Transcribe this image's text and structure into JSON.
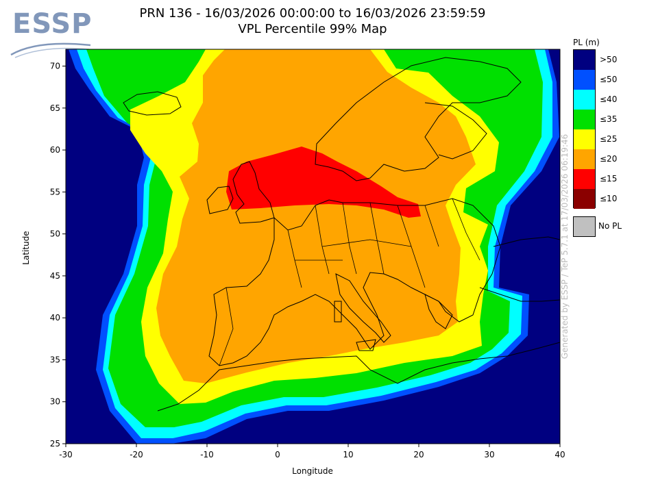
{
  "logo": {
    "text": "ESSP"
  },
  "title": {
    "line1": "PRN 136 - 16/03/2026 00:00:00 to 16/03/2026 23:59:59",
    "line2": "VPL Percentile 99% Map"
  },
  "axes": {
    "xlabel": "Longitude",
    "ylabel": "Latitude",
    "xticks": [
      "-30",
      "-20",
      "-10",
      "0",
      "10",
      "20",
      "30",
      "40"
    ],
    "yticks": [
      "25",
      "30",
      "35",
      "40",
      "45",
      "50",
      "55",
      "60",
      "65",
      "70"
    ],
    "xlim": [
      -30,
      40
    ],
    "ylim": [
      25,
      72
    ]
  },
  "credit": "Generated by ESSP / TeP 5.7.1 at 17/03/2026 06:19:46",
  "legend": {
    "title": "PL (m)",
    "items": [
      {
        "label": ">50",
        "color": "#000080"
      },
      {
        "label": "≤50",
        "color": "#0050ff"
      },
      {
        "label": "≤40",
        "color": "#00ffff"
      },
      {
        "label": "≤35",
        "color": "#00e000"
      },
      {
        "label": "≤25",
        "color": "#ffff00"
      },
      {
        "label": "≤20",
        "color": "#ffa500"
      },
      {
        "label": "≤15",
        "color": "#ff0000"
      },
      {
        "label": "≤10",
        "color": "#8b0000"
      }
    ],
    "no_pl": {
      "label": "No PL",
      "color": "#c0c0c0"
    }
  }
}
